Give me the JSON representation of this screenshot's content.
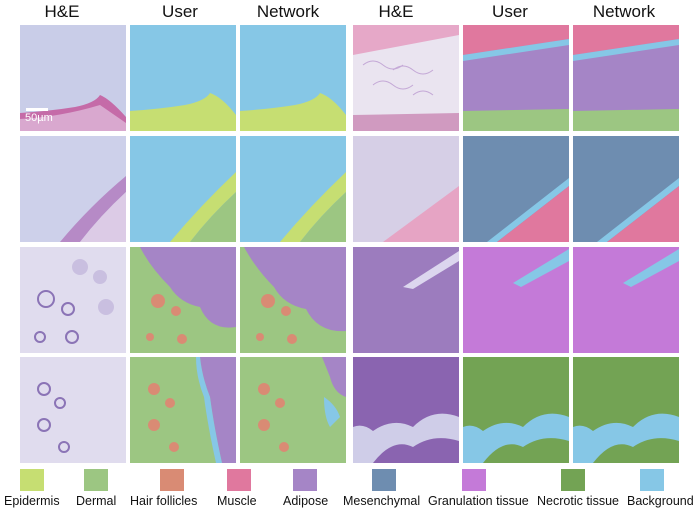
{
  "columns": [
    "H&E",
    "User",
    "Network",
    "H&E",
    "User",
    "Network"
  ],
  "scale_bar": "50µm",
  "legend": [
    {
      "label": "Epidermis",
      "color": "#c6de72"
    },
    {
      "label": "Dermal",
      "color": "#9cc682"
    },
    {
      "label": "Hair follicles",
      "color": "#d98b74"
    },
    {
      "label": "Muscle",
      "color": "#e0789e"
    },
    {
      "label": "Adipose",
      "color": "#a585c6"
    },
    {
      "label": "Mesenchymal",
      "color": "#6e8db0"
    },
    {
      "label": "Granulation tissue",
      "color": "#c47ad8"
    },
    {
      "label": "Necrotic tissue",
      "color": "#73a354"
    },
    {
      "label": "Background",
      "color": "#86c7e6"
    }
  ]
}
